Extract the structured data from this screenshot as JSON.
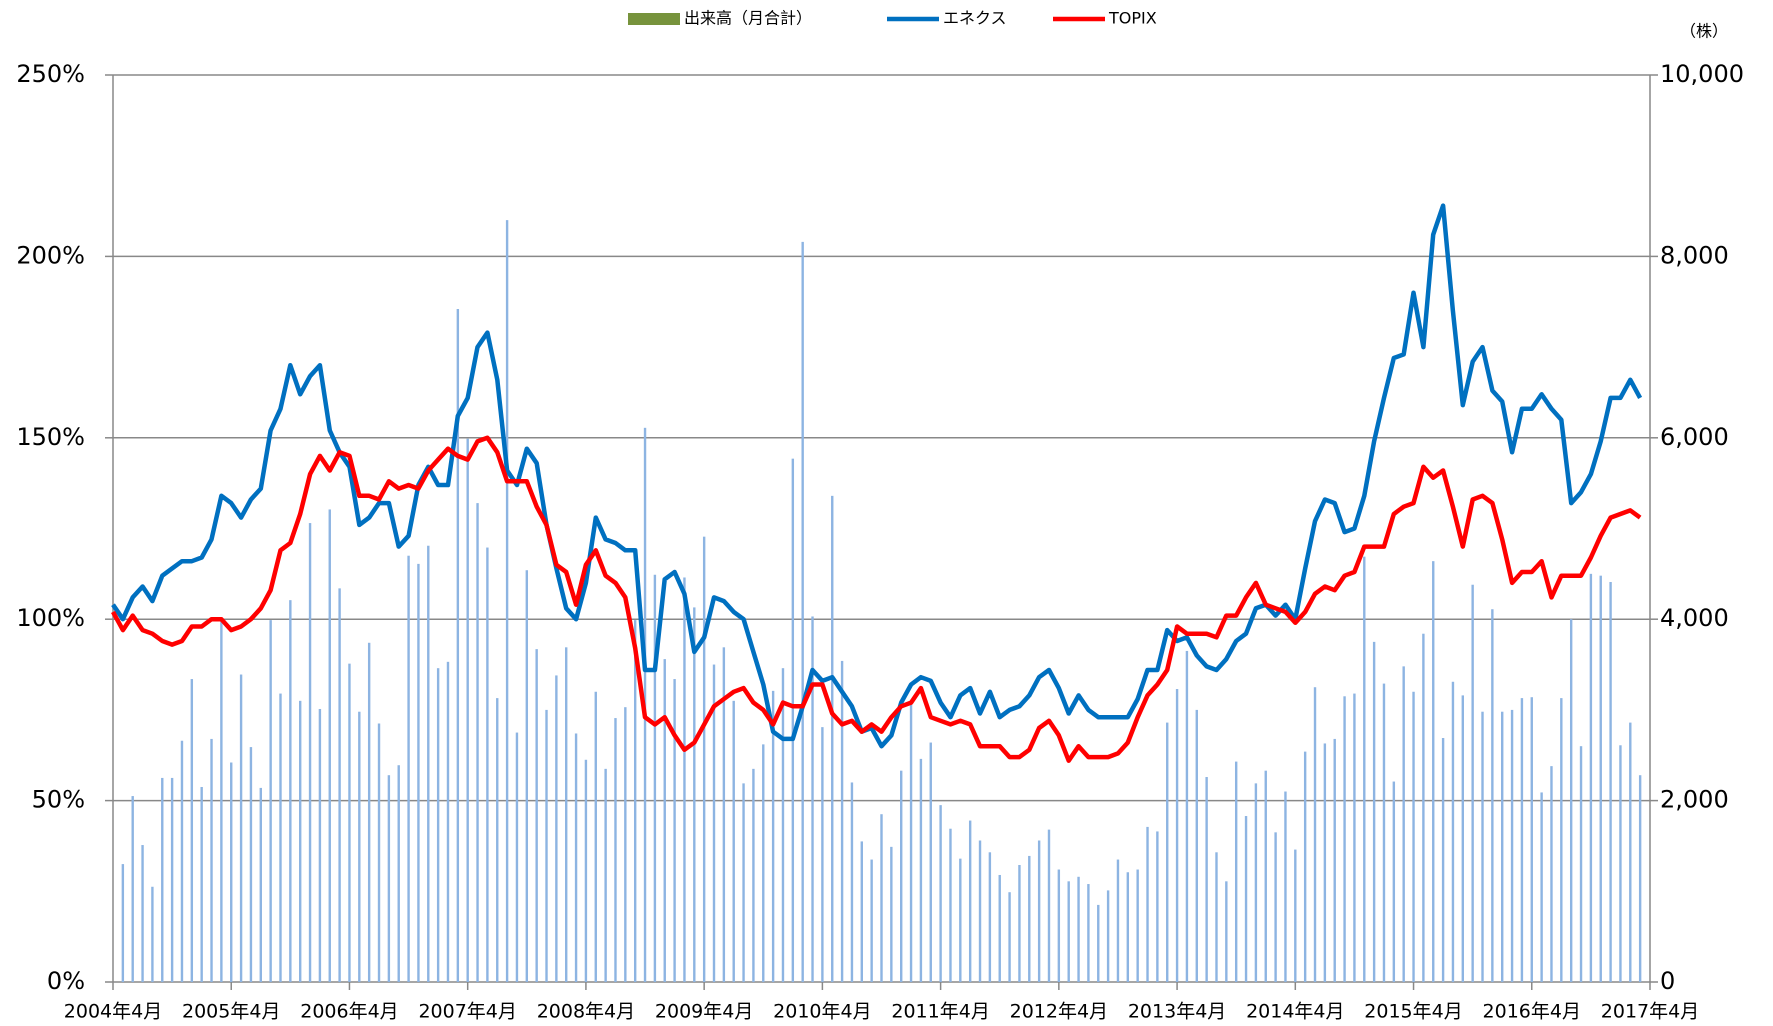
{
  "chart_data": {
    "type": "bar-line",
    "unit_label": "（株）",
    "categories": [
      "2004年4月",
      null,
      null,
      null,
      null,
      null,
      null,
      null,
      null,
      null,
      null,
      null,
      "2005年4月",
      null,
      null,
      null,
      null,
      null,
      null,
      null,
      null,
      null,
      null,
      null,
      "2006年4月",
      null,
      null,
      null,
      null,
      null,
      null,
      null,
      null,
      null,
      null,
      null,
      "2007年4月",
      null,
      null,
      null,
      null,
      null,
      null,
      null,
      null,
      null,
      null,
      null,
      "2008年4月",
      null,
      null,
      null,
      null,
      null,
      null,
      null,
      null,
      null,
      null,
      null,
      "2009年4月",
      null,
      null,
      null,
      null,
      null,
      null,
      null,
      null,
      null,
      null,
      null,
      "2010年4月",
      null,
      null,
      null,
      null,
      null,
      null,
      null,
      null,
      null,
      null,
      null,
      "2011年4月",
      null,
      null,
      null,
      null,
      null,
      null,
      null,
      null,
      null,
      null,
      null,
      "2012年4月",
      null,
      null,
      null,
      null,
      null,
      null,
      null,
      null,
      null,
      null,
      null,
      "2013年4月",
      null,
      null,
      null,
      null,
      null,
      null,
      null,
      null,
      null,
      null,
      null,
      "2014年4月",
      null,
      null,
      null,
      null,
      null,
      null,
      null,
      null,
      null,
      null,
      null,
      "2015年4月",
      null,
      null,
      null,
      null,
      null,
      null,
      null,
      null,
      null,
      null,
      null,
      "2016年4月",
      null,
      null,
      null,
      null,
      null,
      null,
      null,
      null,
      null,
      null,
      null,
      "2017年4月"
    ],
    "series": [
      {
        "name": "出来高（月合計）",
        "kind": "bar",
        "axis": "y2",
        "color": "#8db4e2",
        "legend_color": "#77933c",
        "values": [
          null,
          1300,
          2050,
          1510,
          1050,
          2250,
          2250,
          2660,
          3340,
          2150,
          2680,
          3980,
          2420,
          3390,
          2590,
          2140,
          3990,
          3180,
          4210,
          3100,
          5060,
          3010,
          5210,
          4340,
          3510,
          2980,
          3740,
          2850,
          2280,
          2390,
          4700,
          4610,
          4810,
          3460,
          3530,
          7420,
          5990,
          5280,
          4790,
          3130,
          8400,
          2750,
          4540,
          3670,
          3000,
          3380,
          3690,
          2740,
          2450,
          3200,
          2350,
          2910,
          3030,
          3990,
          6110,
          4490,
          3560,
          3340,
          4460,
          4130,
          4910,
          3500,
          3690,
          3100,
          2190,
          2350,
          2620,
          3210,
          3460,
          5770,
          8160,
          4030,
          2810,
          5360,
          3540,
          2200,
          1550,
          1350,
          1850,
          1490,
          2330,
          3090,
          2460,
          2640,
          1950,
          1690,
          1360,
          1780,
          1560,
          1430,
          1180,
          990,
          1290,
          1390,
          1560,
          1680,
          1240,
          1110,
          1160,
          1080,
          850,
          1010,
          1350,
          1210,
          1240,
          1710,
          1660,
          2860,
          3230,
          3650,
          3000,
          2260,
          1430,
          1110,
          2430,
          1830,
          2190,
          2330,
          1650,
          2100,
          1460,
          2540,
          3250,
          2630,
          2680,
          3150,
          3180,
          4690,
          3750,
          3290,
          2210,
          3480,
          3200,
          3840,
          4640,
          2690,
          3310,
          3160,
          4380,
          2980,
          4110,
          2980,
          3000,
          3130,
          3140,
          2090,
          2380,
          3130,
          4000,
          2600,
          4500,
          4480,
          4410,
          2610,
          2860,
          2280,
          null
        ]
      },
      {
        "name": "エネクス",
        "kind": "line",
        "color": "#0070c0",
        "values": [
          104,
          100,
          106,
          109,
          105,
          112,
          114,
          116,
          116,
          117,
          122,
          134,
          132,
          128,
          133,
          136,
          152,
          158,
          170,
          162,
          167,
          170,
          152,
          146,
          142,
          126,
          128,
          132,
          132,
          120,
          123,
          137,
          142,
          137,
          137,
          156,
          161,
          175,
          179,
          166,
          141,
          137,
          147,
          143,
          126,
          114,
          103,
          100,
          110,
          128,
          122,
          121,
          119,
          119,
          86,
          86,
          111,
          113,
          107,
          91,
          95,
          106,
          105,
          102,
          100,
          91,
          82,
          69,
          67,
          67,
          76,
          86,
          83,
          84,
          80,
          76,
          69,
          70,
          65,
          68,
          77,
          82,
          84,
          83,
          77,
          73,
          79,
          81,
          74,
          80,
          73,
          75,
          76,
          79,
          84,
          86,
          81,
          74,
          79,
          75,
          73,
          73,
          73,
          73,
          78,
          86,
          86,
          97,
          94,
          95,
          90,
          87,
          86,
          89,
          94,
          96,
          103,
          104,
          101,
          104,
          100,
          114,
          127,
          133,
          132,
          124,
          125,
          134,
          149,
          161,
          172,
          173,
          190,
          175,
          206,
          214,
          185,
          159,
          171,
          175,
          163,
          160,
          146,
          158,
          158,
          162,
          158,
          155,
          132,
          135,
          140,
          149,
          161,
          161,
          166,
          161,
          null
        ]
      },
      {
        "name": "TOPIX",
        "kind": "line",
        "color": "#ff0000",
        "values": [
          102,
          97,
          101,
          97,
          96,
          94,
          93,
          94,
          98,
          98,
          100,
          100,
          97,
          98,
          100,
          103,
          108,
          119,
          121,
          129,
          140,
          145,
          141,
          146,
          145,
          134,
          134,
          133,
          138,
          136,
          137,
          136,
          141,
          144,
          147,
          145,
          144,
          149,
          150,
          146,
          138,
          138,
          138,
          131,
          126,
          115,
          113,
          104,
          115,
          119,
          112,
          110,
          106,
          92,
          73,
          71,
          73,
          68,
          64,
          66,
          71,
          76,
          78,
          80,
          81,
          77,
          75,
          71,
          77,
          76,
          76,
          82,
          82,
          74,
          71,
          72,
          69,
          71,
          69,
          73,
          76,
          77,
          81,
          73,
          72,
          71,
          72,
          71,
          65,
          65,
          65,
          62,
          62,
          64,
          70,
          72,
          68,
          61,
          65,
          62,
          62,
          62,
          63,
          66,
          73,
          79,
          82,
          86,
          98,
          96,
          96,
          96,
          95,
          101,
          101,
          106,
          110,
          104,
          103,
          102,
          99,
          102,
          107,
          109,
          108,
          112,
          113,
          120,
          120,
          120,
          129,
          131,
          132,
          142,
          139,
          141,
          131,
          120,
          133,
          134,
          132,
          122,
          110,
          113,
          113,
          116,
          106,
          112,
          112,
          112,
          117,
          123,
          128,
          129,
          130,
          128,
          null
        ]
      }
    ],
    "ylim": [
      0,
      250
    ],
    "yticks": [
      {
        "value": 0,
        "label": "0%"
      },
      {
        "value": 50,
        "label": "50%"
      },
      {
        "value": 100,
        "label": "100%"
      },
      {
        "value": 150,
        "label": "150%"
      },
      {
        "value": 200,
        "label": "200%"
      },
      {
        "value": 250,
        "label": "250%"
      }
    ],
    "y2lim": [
      0,
      10000
    ],
    "y2ticks": [
      0,
      {
        "value": 2000,
        "label": "2,000"
      },
      {
        "value": 4000,
        "label": "4,000"
      },
      {
        "value": 6000,
        "label": "6,000"
      },
      {
        "value": 8000,
        "label": "8,000"
      },
      {
        "value": 10000,
        "label": "10,000"
      }
    ],
    "grid": true,
    "legend": "top"
  }
}
